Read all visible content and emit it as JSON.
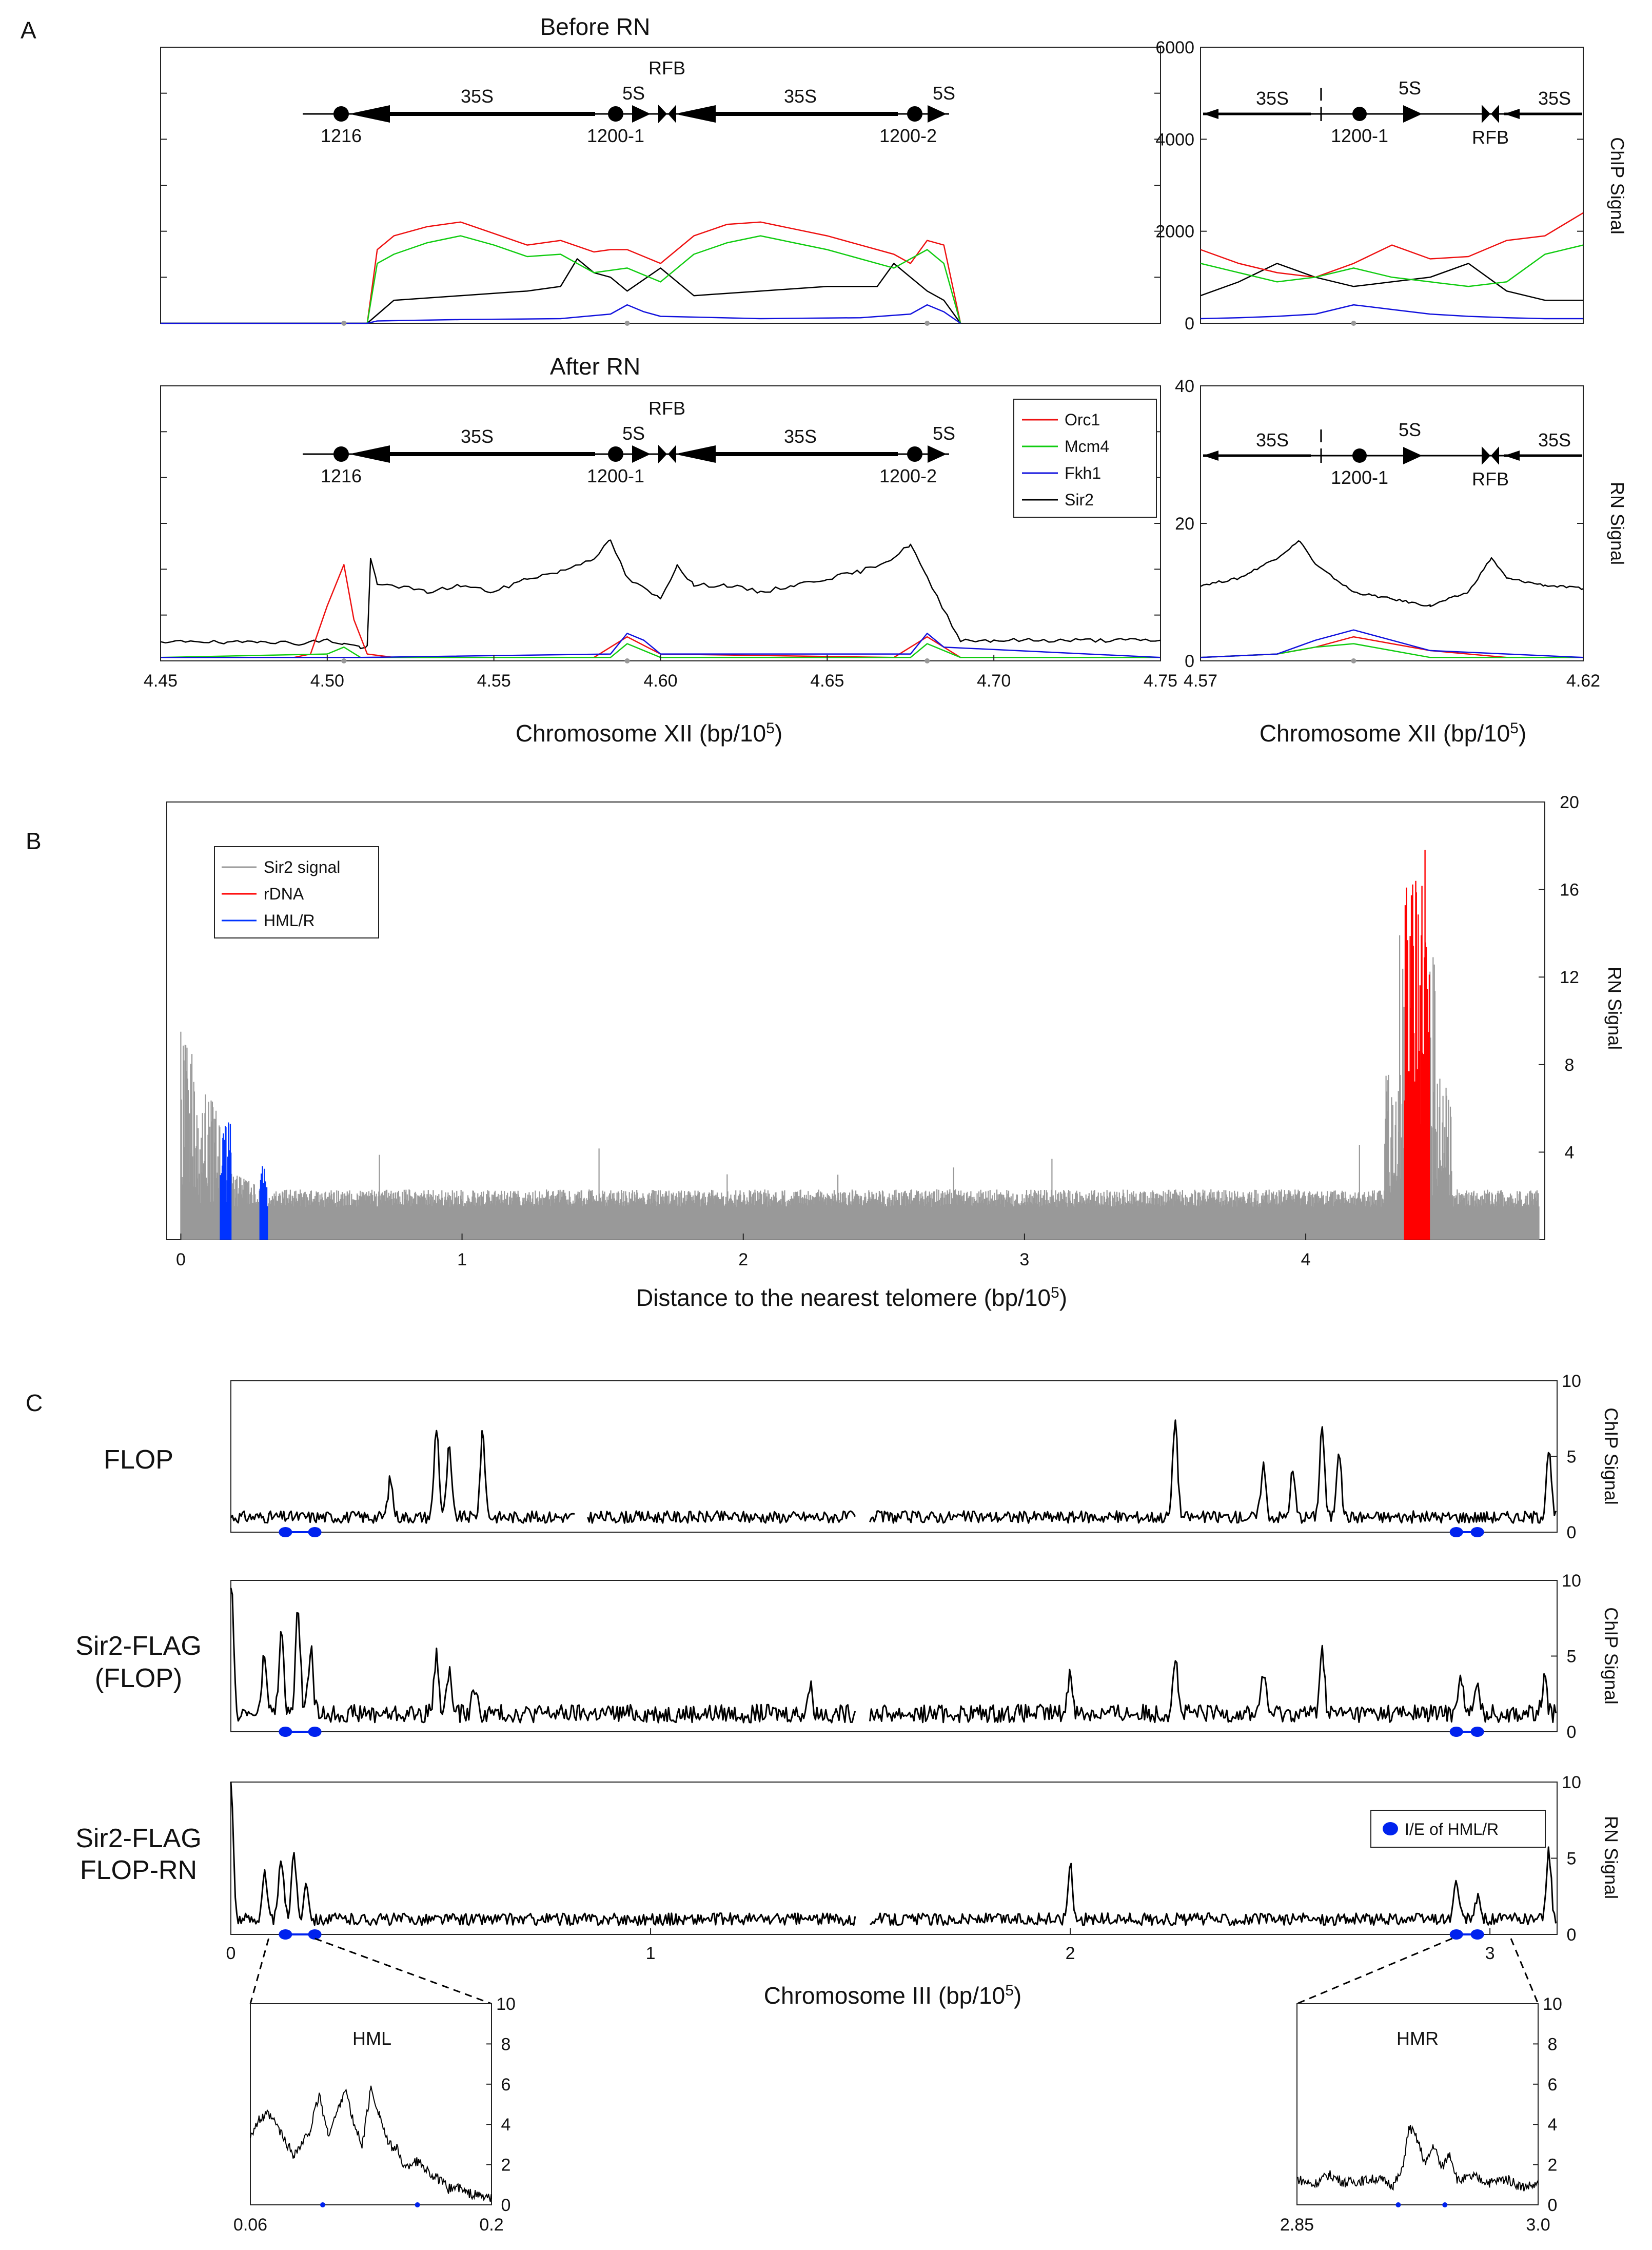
{
  "panels": {
    "A": {
      "letter": "A"
    },
    "B": {
      "letter": "B"
    },
    "C": {
      "letter": "C"
    }
  },
  "colors": {
    "orc1": "#ee1111",
    "mcm4": "#11cc11",
    "fkh1": "#1111dd",
    "sir2": "#000000",
    "gray": "#999999",
    "rdna": "#ff0000",
    "hml": "#0033ff"
  },
  "chart_data": [
    {
      "id": "A_before_main",
      "type": "line",
      "title": "Before RN",
      "xlim": [
        4.45,
        4.75
      ],
      "ylim": [
        0,
        6000
      ],
      "series": [
        {
          "name": "Orc1",
          "x": [
            4.45,
            4.505,
            4.512,
            4.515,
            4.52,
            4.53,
            4.54,
            4.55,
            4.56,
            4.57,
            4.58,
            4.585,
            4.59,
            4.6,
            4.61,
            4.62,
            4.63,
            4.64,
            4.65,
            4.66,
            4.67,
            4.675,
            4.68,
            4.685,
            4.69
          ],
          "y": [
            0,
            0,
            0,
            1600,
            1900,
            2100,
            2200,
            1950,
            1700,
            1800,
            1550,
            1600,
            1600,
            1300,
            1900,
            2150,
            2200,
            2050,
            1900,
            1700,
            1500,
            1300,
            1800,
            1700,
            0
          ]
        },
        {
          "name": "Mcm4",
          "x": [
            4.45,
            4.505,
            4.512,
            4.515,
            4.52,
            4.53,
            4.54,
            4.55,
            4.56,
            4.57,
            4.58,
            4.59,
            4.6,
            4.61,
            4.62,
            4.63,
            4.64,
            4.65,
            4.66,
            4.67,
            4.68,
            4.685,
            4.69
          ],
          "y": [
            0,
            0,
            0,
            1300,
            1500,
            1750,
            1900,
            1700,
            1450,
            1500,
            1100,
            1200,
            900,
            1500,
            1750,
            1900,
            1750,
            1600,
            1400,
            1200,
            1600,
            1300,
            0
          ]
        },
        {
          "name": "Fkh1",
          "x": [
            4.45,
            4.505,
            4.512,
            4.515,
            4.54,
            4.57,
            4.585,
            4.59,
            4.595,
            4.6,
            4.63,
            4.66,
            4.675,
            4.68,
            4.685,
            4.69
          ],
          "y": [
            0,
            0,
            0,
            50,
            80,
            100,
            200,
            400,
            250,
            150,
            100,
            120,
            200,
            400,
            250,
            0
          ]
        },
        {
          "name": "Sir2",
          "x": [
            4.45,
            4.505,
            4.512,
            4.52,
            4.54,
            4.56,
            4.57,
            4.575,
            4.58,
            4.585,
            4.59,
            4.6,
            4.605,
            4.61,
            4.63,
            4.65,
            4.665,
            4.67,
            4.675,
            4.68,
            4.685,
            4.69
          ],
          "y": [
            0,
            0,
            0,
            500,
            600,
            700,
            800,
            1400,
            1100,
            1000,
            700,
            1200,
            900,
            600,
            700,
            800,
            800,
            1300,
            1000,
            700,
            500,
            0
          ]
        }
      ],
      "map": {
        "arrows": [
          "35S",
          "5S",
          "35S",
          "5S"
        ],
        "labels": [
          "1216",
          "1200-1",
          "1200-2",
          "RFB"
        ]
      }
    },
    {
      "id": "A_before_zoom",
      "type": "line",
      "xlim": [
        4.57,
        4.62
      ],
      "ylim": [
        0,
        6000
      ],
      "yticks": [
        "0",
        "2000",
        "4000",
        "6000"
      ],
      "ylabel": "ChIP Signal",
      "series": [
        {
          "name": "Orc1",
          "x": [
            4.57,
            4.575,
            4.58,
            4.585,
            4.59,
            4.595,
            4.6,
            4.605,
            4.61,
            4.615,
            4.62
          ],
          "y": [
            1600,
            1300,
            1100,
            1000,
            1300,
            1700,
            1400,
            1450,
            1800,
            1900,
            2400
          ]
        },
        {
          "name": "Mcm4",
          "x": [
            4.57,
            4.575,
            4.58,
            4.585,
            4.59,
            4.595,
            4.6,
            4.605,
            4.61,
            4.615,
            4.62
          ],
          "y": [
            1300,
            1100,
            900,
            1000,
            1200,
            1000,
            900,
            800,
            900,
            1500,
            1700
          ]
        },
        {
          "name": "Fkh1",
          "x": [
            4.57,
            4.575,
            4.58,
            4.585,
            4.59,
            4.595,
            4.6,
            4.605,
            4.61,
            4.615,
            4.62
          ],
          "y": [
            100,
            120,
            150,
            200,
            400,
            300,
            200,
            150,
            120,
            100,
            100
          ]
        },
        {
          "name": "Sir2",
          "x": [
            4.57,
            4.575,
            4.58,
            4.585,
            4.59,
            4.595,
            4.6,
            4.605,
            4.61,
            4.615,
            4.62
          ],
          "y": [
            600,
            900,
            1300,
            1000,
            800,
            900,
            1000,
            1300,
            700,
            500,
            500
          ]
        }
      ],
      "map": {
        "arrows": [
          "35S",
          "5S",
          "35S"
        ],
        "labels": [
          "I",
          "1200-1",
          "RFB"
        ]
      }
    },
    {
      "id": "A_after_main",
      "type": "line",
      "title": "After RN",
      "xlim": [
        4.45,
        4.75
      ],
      "xticks": [
        "4.45",
        "4.50",
        "4.55",
        "4.60",
        "4.65",
        "4.70",
        "4.75"
      ],
      "ylim": [
        0,
        40
      ],
      "xlabel": "Chromosome XII (bp/10",
      "xlabel_sup": "5",
      "series": [
        {
          "name": "Orc1",
          "x": [
            4.45,
            4.49,
            4.495,
            4.5,
            4.505,
            4.508,
            4.512,
            4.52,
            4.58,
            4.585,
            4.59,
            4.6,
            4.67,
            4.675,
            4.68,
            4.69,
            4.75
          ],
          "y": [
            0.5,
            0.5,
            1,
            8,
            14,
            6,
            1,
            0.5,
            0.5,
            2,
            3.5,
            1,
            0.5,
            2,
            3.5,
            0.5,
            0.5
          ]
        },
        {
          "name": "Mcm4",
          "x": [
            4.45,
            4.5,
            4.505,
            4.51,
            4.585,
            4.59,
            4.6,
            4.675,
            4.68,
            4.69,
            4.75
          ],
          "y": [
            0.5,
            1,
            2,
            0.5,
            0.5,
            2.5,
            0.5,
            0.5,
            2.5,
            0.5,
            0.5
          ]
        },
        {
          "name": "Fkh1",
          "x": [
            4.45,
            4.5,
            4.51,
            4.585,
            4.59,
            4.595,
            4.6,
            4.675,
            4.68,
            4.685,
            4.75
          ],
          "y": [
            0.5,
            0.5,
            0.5,
            1,
            4,
            3,
            1,
            1,
            4,
            2,
            0.5
          ]
        },
        {
          "name": "Sir2",
          "x": [
            4.45,
            4.46,
            4.47,
            4.48,
            4.49,
            4.5,
            4.505,
            4.51,
            4.512,
            4.513,
            4.515,
            4.52,
            4.53,
            4.54,
            4.55,
            4.56,
            4.57,
            4.58,
            4.585,
            4.59,
            4.6,
            4.605,
            4.61,
            4.62,
            4.63,
            4.64,
            4.65,
            4.66,
            4.67,
            4.675,
            4.68,
            4.69,
            4.7,
            4.72,
            4.75
          ],
          "y": [
            2.5,
            3,
            2.5,
            3,
            2.5,
            3,
            2.5,
            2,
            2,
            15,
            11,
            11,
            10,
            11,
            10,
            12,
            13,
            15,
            17.5,
            12,
            9,
            14,
            11,
            11,
            10,
            11,
            12,
            13,
            15,
            17,
            12,
            3,
            3,
            3,
            3
          ]
        }
      ],
      "map": {
        "arrows": [
          "35S",
          "5S",
          "35S",
          "5S"
        ],
        "labels": [
          "1216",
          "1200-1",
          "1200-2",
          "RFB"
        ]
      }
    },
    {
      "id": "A_after_zoom",
      "type": "line",
      "xlim": [
        4.57,
        4.62
      ],
      "xticks": [
        "4.57",
        "4.62"
      ],
      "ylim": [
        0,
        40
      ],
      "yticks": [
        "0",
        "20",
        "40"
      ],
      "ylabel": "RN Signal",
      "xlabel": "Chromosome XII (bp/10",
      "xlabel_sup": "5",
      "series": [
        {
          "name": "Orc1",
          "x": [
            4.57,
            4.58,
            4.585,
            4.59,
            4.595,
            4.6,
            4.61,
            4.62
          ],
          "y": [
            0.5,
            1,
            2,
            3.5,
            2.5,
            1.5,
            0.5,
            0.5
          ]
        },
        {
          "name": "Mcm4",
          "x": [
            4.57,
            4.58,
            4.585,
            4.59,
            4.595,
            4.6,
            4.62
          ],
          "y": [
            0.5,
            1,
            2,
            2.5,
            1.5,
            0.5,
            0.5
          ]
        },
        {
          "name": "Fkh1",
          "x": [
            4.57,
            4.58,
            4.585,
            4.59,
            4.595,
            4.6,
            4.62
          ],
          "y": [
            0.5,
            1,
            3,
            4.5,
            3,
            1.5,
            0.5
          ]
        },
        {
          "name": "Sir2",
          "x": [
            4.57,
            4.575,
            4.58,
            4.583,
            4.585,
            4.59,
            4.6,
            4.605,
            4.608,
            4.61,
            4.615,
            4.62
          ],
          "y": [
            11,
            12,
            15,
            17.5,
            14,
            10,
            8,
            10,
            15,
            12,
            11,
            10.5
          ]
        }
      ],
      "map": {
        "arrows": [
          "35S",
          "5S",
          "35S"
        ],
        "labels": [
          "I",
          "1200-1",
          "RFB"
        ]
      }
    },
    {
      "id": "A_legend",
      "type": "legend",
      "entries": [
        "Orc1",
        "Mcm4",
        "Fkh1",
        "Sir2"
      ]
    },
    {
      "id": "B",
      "type": "bar",
      "xlim": [
        -0.05,
        4.85
      ],
      "xticks": [
        "0",
        "1",
        "2",
        "3",
        "4"
      ],
      "ylim": [
        0,
        20
      ],
      "yticks": [
        "4",
        "8",
        "12",
        "16",
        "20"
      ],
      "ylabel": "RN Signal",
      "xlabel": "Distance to the nearest telomere (bp/10",
      "xlabel_sup": "5",
      "series": [
        {
          "name": "Sir2 signal",
          "baseline": 1.5
        },
        {
          "name": "rDNA",
          "range": [
            4.35,
            4.44
          ],
          "peak": 18
        },
        {
          "name": "HML/R",
          "range": [
            0.14,
            0.31
          ],
          "peak": 5.5
        }
      ]
    },
    {
      "id": "C_flop",
      "type": "line",
      "row_label": "FLOP",
      "xlim": [
        0,
        3.16
      ],
      "ylim": [
        0,
        10
      ],
      "yticks": [
        "0",
        "5",
        "10"
      ],
      "ylabel": "ChIP Signal",
      "peaks": [
        [
          0.38,
          3.5
        ],
        [
          0.49,
          7.0
        ],
        [
          0.52,
          5.5
        ],
        [
          0.6,
          6.5
        ],
        [
          2.25,
          7.5
        ],
        [
          2.46,
          4.5
        ],
        [
          2.53,
          4.0
        ],
        [
          2.6,
          7.0
        ],
        [
          2.64,
          5.5
        ],
        [
          3.14,
          5.5
        ]
      ],
      "markers": [
        0.13,
        0.2,
        2.92,
        2.97
      ]
    },
    {
      "id": "C_sir2flag",
      "type": "line",
      "row_label": [
        "Sir2-FLAG",
        "(FLOP)"
      ],
      "xlim": [
        0,
        3.16
      ],
      "ylim": [
        0,
        10
      ],
      "yticks": [
        "0",
        "5",
        "10"
      ],
      "ylabel": "ChIP Signal",
      "peaks": [
        [
          0.0,
          10
        ],
        [
          0.08,
          5
        ],
        [
          0.12,
          6.5
        ],
        [
          0.16,
          8
        ],
        [
          0.19,
          5.5
        ],
        [
          0.49,
          5
        ],
        [
          0.52,
          4
        ],
        [
          0.58,
          3
        ],
        [
          1.38,
          3
        ],
        [
          2.0,
          4
        ],
        [
          2.25,
          5
        ],
        [
          2.46,
          4
        ],
        [
          2.6,
          5.5
        ],
        [
          2.93,
          4
        ],
        [
          2.97,
          3
        ],
        [
          3.13,
          3.5
        ]
      ],
      "markers": [
        0.13,
        0.2,
        2.92,
        2.97
      ]
    },
    {
      "id": "C_rn",
      "type": "line",
      "row_label": [
        "Sir2-FLAG",
        "FLOP-RN"
      ],
      "xlim": [
        0,
        3.16
      ],
      "xticks": [
        "0",
        "1",
        "2",
        "3"
      ],
      "ylim": [
        0,
        10
      ],
      "yticks": [
        "0",
        "5",
        "10"
      ],
      "ylabel": "RN Signal",
      "xlabel": "Chromosome III (bp/10",
      "xlabel_sup": "5",
      "legend": "I/E of HML/R",
      "peaks": [
        [
          0.0,
          10
        ],
        [
          0.08,
          4
        ],
        [
          0.12,
          5
        ],
        [
          0.15,
          5.5
        ],
        [
          0.18,
          3.5
        ],
        [
          2.0,
          4.5
        ],
        [
          2.92,
          3.5
        ],
        [
          2.97,
          2.5
        ],
        [
          3.14,
          5.5
        ]
      ],
      "markers": [
        0.13,
        0.2,
        2.92,
        2.97
      ]
    },
    {
      "id": "C_inset_hml",
      "type": "line",
      "title": "HML",
      "xlim": [
        0.06,
        0.2
      ],
      "xticks": [
        "0.06",
        "0.2"
      ],
      "ylim": [
        0,
        10
      ],
      "yticks": [
        "0",
        "2",
        "4",
        "6",
        "8",
        "10"
      ],
      "x": [
        0.06,
        0.065,
        0.07,
        0.075,
        0.08,
        0.085,
        0.09,
        0.095,
        0.1,
        0.105,
        0.11,
        0.115,
        0.12,
        0.125,
        0.13,
        0.135,
        0.14,
        0.145,
        0.15,
        0.155,
        0.16,
        0.165,
        0.17,
        0.175,
        0.18,
        0.185,
        0.19,
        0.195,
        0.2
      ],
      "y": [
        3.5,
        4.2,
        4.5,
        4.0,
        3.2,
        2.5,
        3.0,
        3.8,
        5.5,
        3.5,
        4.5,
        5.8,
        4.0,
        3.0,
        5.8,
        4.5,
        3.0,
        2.8,
        1.8,
        2.2,
        2.0,
        1.5,
        1.2,
        0.8,
        0.9,
        0.6,
        0.5,
        0.4,
        0.3
      ],
      "markers": [
        0.102,
        0.157
      ]
    },
    {
      "id": "C_inset_hmr",
      "type": "line",
      "title": "HMR",
      "xlim": [
        2.85,
        3.0
      ],
      "xticks": [
        "2.85",
        "3.0"
      ],
      "ylim": [
        0,
        10
      ],
      "yticks": [
        "0",
        "2",
        "4",
        "6",
        "8",
        "10"
      ],
      "x": [
        2.85,
        2.86,
        2.87,
        2.88,
        2.89,
        2.9,
        2.91,
        2.915,
        2.92,
        2.925,
        2.93,
        2.935,
        2.94,
        2.945,
        2.95,
        2.96,
        2.97,
        2.98,
        2.99,
        3.0
      ],
      "y": [
        1.3,
        1.0,
        1.5,
        1.1,
        1.2,
        1.3,
        1.0,
        1.6,
        3.9,
        3.2,
        2.0,
        3.0,
        1.8,
        2.6,
        1.2,
        1.4,
        1.1,
        1.3,
        0.9,
        1.0
      ],
      "markers": [
        2.913,
        2.942
      ]
    }
  ]
}
